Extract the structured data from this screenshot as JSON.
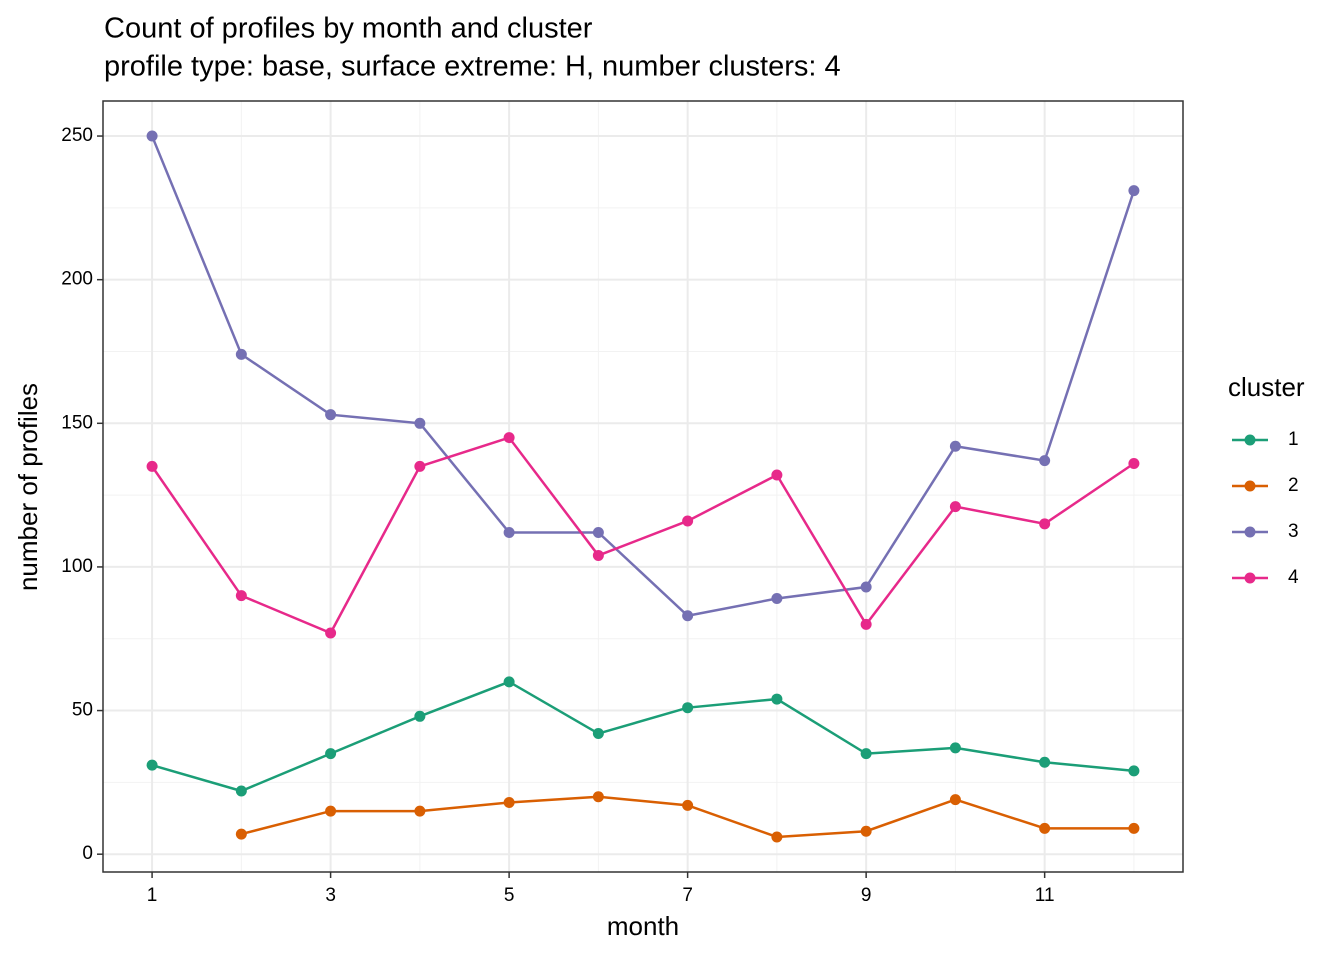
{
  "chart_data": {
    "type": "line",
    "title": "Count of profiles by month and cluster",
    "subtitle": "profile type: base, surface extreme: H, number clusters: 4",
    "xlabel": "month",
    "ylabel": "number of profiles",
    "legend_title": "cluster",
    "legend_position": "right",
    "x": [
      1,
      2,
      3,
      4,
      5,
      6,
      7,
      8,
      9,
      10,
      11,
      12
    ],
    "series": [
      {
        "name": "1",
        "color": "#1b9e77",
        "values": [
          31,
          22,
          35,
          48,
          60,
          42,
          51,
          54,
          35,
          37,
          32,
          29
        ]
      },
      {
        "name": "2",
        "color": "#d95f02",
        "values": [
          null,
          7,
          15,
          15,
          18,
          20,
          17,
          6,
          8,
          19,
          9,
          9
        ]
      },
      {
        "name": "3",
        "color": "#7570b3",
        "values": [
          250,
          174,
          153,
          150,
          112,
          112,
          83,
          89,
          93,
          142,
          137,
          231
        ]
      },
      {
        "name": "4",
        "color": "#e7298a",
        "values": [
          135,
          90,
          77,
          135,
          145,
          104,
          116,
          132,
          80,
          121,
          115,
          136
        ]
      }
    ],
    "xlim": [
      0.45,
      12.55
    ],
    "xticks": [
      1,
      3,
      5,
      7,
      9,
      11
    ],
    "minor_xticks": [
      2,
      4,
      6,
      8,
      10,
      12
    ],
    "ylim": [
      -6.2,
      262.2
    ],
    "yticks": [
      0,
      50,
      100,
      150,
      200,
      250
    ],
    "minor_yticks": [
      25,
      75,
      125,
      175,
      225
    ],
    "grid": true
  }
}
